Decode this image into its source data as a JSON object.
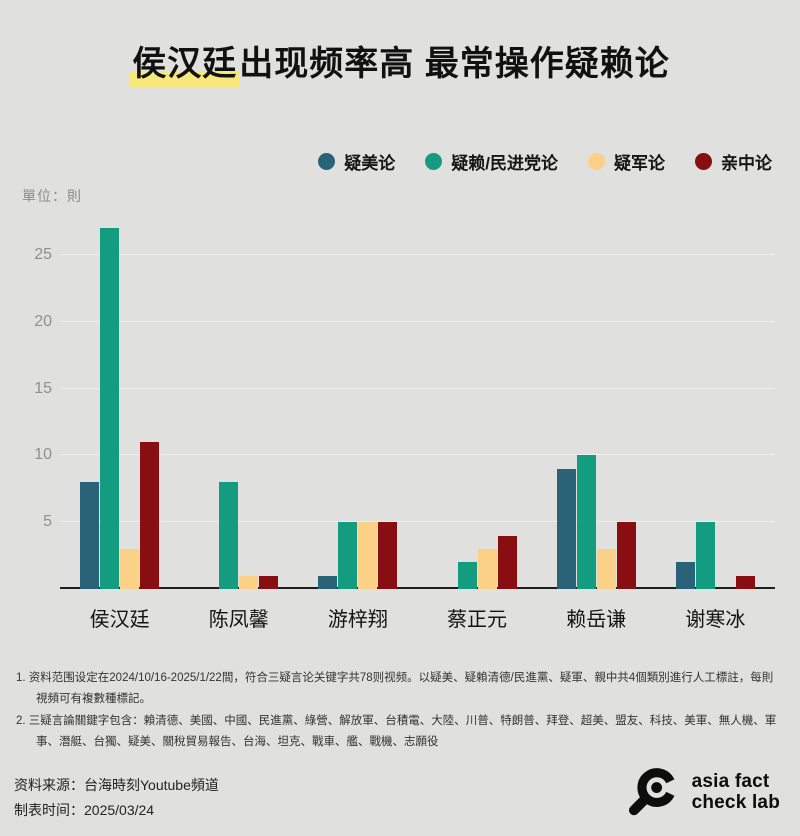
{
  "title": {
    "highlight": "侯汉廷",
    "rest": "出现频率高 最常操作疑赖论"
  },
  "unit_label": "單位：則",
  "chart_data": {
    "type": "bar",
    "title": "侯汉廷出现频率高 最常操作疑赖论",
    "categories": [
      "侯汉廷",
      "陈凤馨",
      "游梓翔",
      "蔡正元",
      "赖岳谦",
      "谢寒冰"
    ],
    "series": [
      {
        "name": "疑美论",
        "color": "#2a6378",
        "values": [
          8,
          0,
          1,
          0,
          9,
          2
        ]
      },
      {
        "name": "疑赖/民进党论",
        "color": "#149c80",
        "values": [
          27,
          8,
          5,
          2,
          10,
          5
        ]
      },
      {
        "name": "疑军论",
        "color": "#fad186",
        "values": [
          3,
          1,
          5,
          3,
          3,
          0
        ]
      },
      {
        "name": "亲中论",
        "color": "#880e11",
        "values": [
          11,
          1,
          5,
          4,
          5,
          1
        ]
      }
    ],
    "xlabel": "",
    "ylabel": "單位：則",
    "yticks": [
      5,
      10,
      15,
      20,
      25
    ],
    "ylim": [
      0,
      28
    ],
    "grid": true,
    "legend_position": "top-right"
  },
  "footnotes": [
    "1. 资料范围设定在2024/10/16-2025/1/22間，符合三疑言论关键字共78则视频。以疑美、疑賴清德/民進黨、疑軍、親中共4個類別進行人工標註，每則視頻可有複數種標記。",
    "2. 三疑言論關鍵字包含：賴清德、美國、中國、民進黨、綠營、解放軍、台積電、大陸、川普、特朗普、拜登、超美、盟友、科技、美軍、無人機、軍事、潛艇、台獨、疑美、關稅貿易報告、台海、坦克、戰車、艦、戰機、志願役"
  ],
  "source": {
    "line1": "资料来源：台海時刻Youtube頻道",
    "line2": "制表时间：2025/03/24"
  },
  "logo": {
    "line1": "asia fact",
    "line2": "check lab"
  },
  "colors": {
    "background": "#e0e0de",
    "highlight": "#f6e97a",
    "axis": "#1f1f1f",
    "gridline": "#eeeeec"
  }
}
